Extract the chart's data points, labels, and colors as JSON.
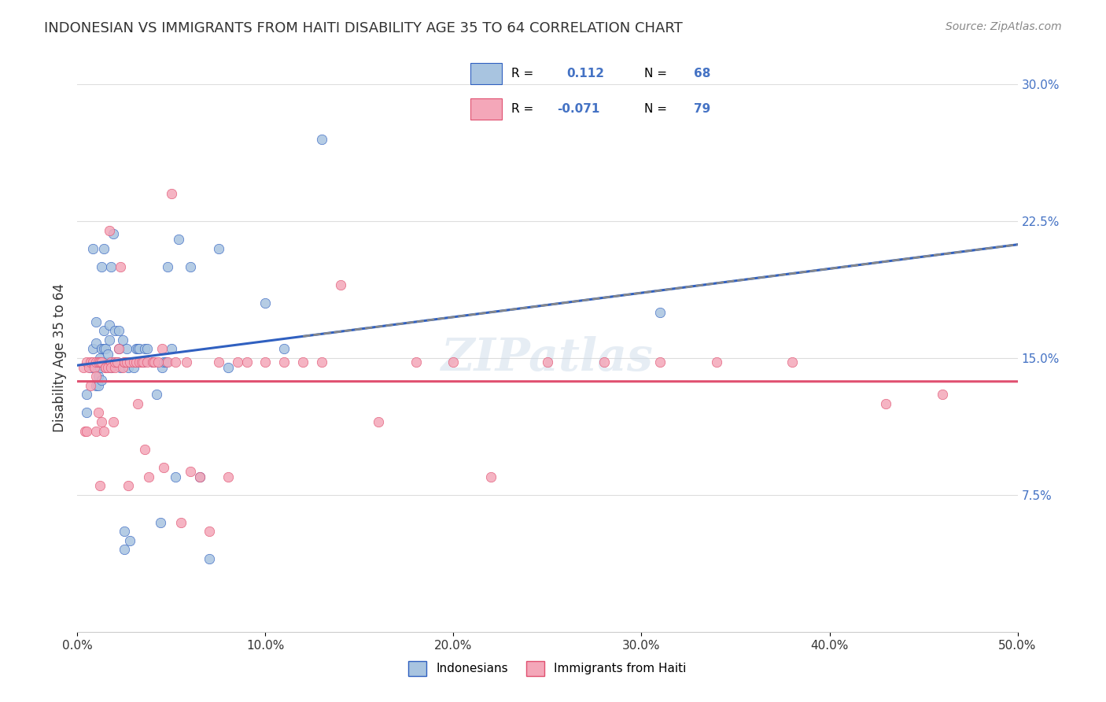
{
  "title": "INDONESIAN VS IMMIGRANTS FROM HAITI DISABILITY AGE 35 TO 64 CORRELATION CHART",
  "source": "Source: ZipAtlas.com",
  "ylabel": "Disability Age 35 to 64",
  "xlim": [
    0.0,
    0.5
  ],
  "ylim": [
    0.0,
    0.3
  ],
  "xticks": [
    0.0,
    0.1,
    0.2,
    0.3,
    0.4,
    0.5
  ],
  "yticks_right": [
    0.075,
    0.15,
    0.225,
    0.3
  ],
  "ytick_labels_right": [
    "7.5%",
    "15.0%",
    "22.5%",
    "30.0%"
  ],
  "xtick_labels": [
    "0.0%",
    "10.0%",
    "20.0%",
    "30.0%",
    "40.0%",
    "50.0%"
  ],
  "R_blue": 0.112,
  "N_blue": 68,
  "R_pink": -0.071,
  "N_pink": 79,
  "blue_color": "#a8c4e0",
  "pink_color": "#f4a7b9",
  "line_blue": "#3060c0",
  "line_pink": "#e05070",
  "watermark": "ZIPatlas",
  "legend_label_blue": "Indonesians",
  "legend_label_pink": "Immigrants from Haiti",
  "indonesian_x": [
    0.005,
    0.005,
    0.007,
    0.008,
    0.008,
    0.009,
    0.01,
    0.01,
    0.01,
    0.01,
    0.011,
    0.011,
    0.012,
    0.012,
    0.013,
    0.013,
    0.013,
    0.014,
    0.014,
    0.014,
    0.015,
    0.015,
    0.016,
    0.016,
    0.017,
    0.017,
    0.018,
    0.018,
    0.019,
    0.02,
    0.02,
    0.021,
    0.022,
    0.022,
    0.023,
    0.024,
    0.025,
    0.025,
    0.026,
    0.027,
    0.028,
    0.03,
    0.031,
    0.031,
    0.032,
    0.033,
    0.035,
    0.036,
    0.037,
    0.04,
    0.042,
    0.044,
    0.045,
    0.046,
    0.047,
    0.048,
    0.05,
    0.052,
    0.054,
    0.06,
    0.065,
    0.07,
    0.075,
    0.08,
    0.1,
    0.11,
    0.13,
    0.31
  ],
  "indonesian_y": [
    0.12,
    0.13,
    0.145,
    0.155,
    0.21,
    0.145,
    0.135,
    0.145,
    0.158,
    0.17,
    0.135,
    0.14,
    0.145,
    0.15,
    0.138,
    0.155,
    0.2,
    0.21,
    0.155,
    0.165,
    0.145,
    0.155,
    0.148,
    0.152,
    0.16,
    0.168,
    0.145,
    0.2,
    0.218,
    0.148,
    0.165,
    0.148,
    0.155,
    0.165,
    0.145,
    0.16,
    0.045,
    0.055,
    0.155,
    0.145,
    0.05,
    0.145,
    0.148,
    0.155,
    0.155,
    0.155,
    0.148,
    0.155,
    0.155,
    0.148,
    0.13,
    0.06,
    0.145,
    0.148,
    0.148,
    0.2,
    0.155,
    0.085,
    0.215,
    0.2,
    0.085,
    0.04,
    0.21,
    0.145,
    0.18,
    0.155,
    0.27,
    0.175
  ],
  "haiti_x": [
    0.003,
    0.004,
    0.005,
    0.005,
    0.006,
    0.007,
    0.007,
    0.008,
    0.009,
    0.01,
    0.01,
    0.01,
    0.011,
    0.011,
    0.012,
    0.012,
    0.013,
    0.013,
    0.014,
    0.015,
    0.015,
    0.016,
    0.017,
    0.018,
    0.018,
    0.019,
    0.02,
    0.02,
    0.021,
    0.022,
    0.023,
    0.024,
    0.025,
    0.025,
    0.026,
    0.027,
    0.028,
    0.03,
    0.031,
    0.032,
    0.033,
    0.034,
    0.035,
    0.036,
    0.037,
    0.038,
    0.04,
    0.041,
    0.043,
    0.045,
    0.046,
    0.048,
    0.05,
    0.052,
    0.055,
    0.058,
    0.06,
    0.065,
    0.07,
    0.075,
    0.08,
    0.085,
    0.09,
    0.1,
    0.11,
    0.12,
    0.13,
    0.14,
    0.16,
    0.18,
    0.2,
    0.22,
    0.25,
    0.28,
    0.31,
    0.34,
    0.38,
    0.43,
    0.46
  ],
  "haiti_y": [
    0.145,
    0.11,
    0.148,
    0.11,
    0.145,
    0.148,
    0.135,
    0.148,
    0.145,
    0.14,
    0.148,
    0.11,
    0.12,
    0.148,
    0.148,
    0.08,
    0.115,
    0.148,
    0.11,
    0.145,
    0.145,
    0.145,
    0.22,
    0.148,
    0.145,
    0.115,
    0.145,
    0.148,
    0.148,
    0.155,
    0.2,
    0.145,
    0.148,
    0.148,
    0.148,
    0.08,
    0.148,
    0.148,
    0.148,
    0.125,
    0.148,
    0.148,
    0.148,
    0.1,
    0.148,
    0.085,
    0.148,
    0.148,
    0.148,
    0.155,
    0.09,
    0.148,
    0.24,
    0.148,
    0.06,
    0.148,
    0.088,
    0.085,
    0.055,
    0.148,
    0.085,
    0.148,
    0.148,
    0.148,
    0.148,
    0.148,
    0.148,
    0.19,
    0.115,
    0.148,
    0.148,
    0.085,
    0.148,
    0.148,
    0.148,
    0.148,
    0.148,
    0.125,
    0.13
  ]
}
